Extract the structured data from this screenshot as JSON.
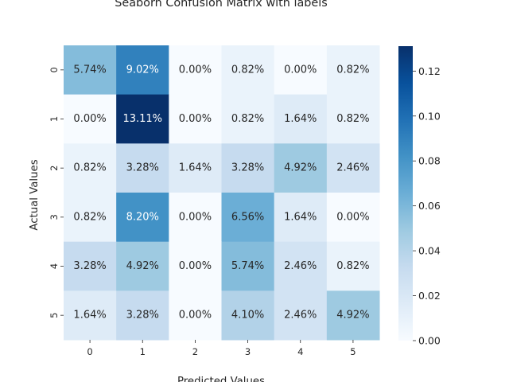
{
  "chart_data": {
    "type": "heatmap",
    "title": "Seaborn Confusion Matrix with labels",
    "xlabel": "Predicted Values",
    "ylabel": "Actual Values",
    "x_categories": [
      "0",
      "1",
      "2",
      "3",
      "4",
      "5"
    ],
    "y_categories": [
      "0",
      "1",
      "2",
      "3",
      "4",
      "5"
    ],
    "values": [
      [
        0.0574,
        0.0902,
        0.0,
        0.0082,
        0.0,
        0.0082
      ],
      [
        0.0,
        0.1311,
        0.0,
        0.0082,
        0.0164,
        0.0082
      ],
      [
        0.0082,
        0.0328,
        0.0164,
        0.0328,
        0.0492,
        0.0246
      ],
      [
        0.0082,
        0.082,
        0.0,
        0.0656,
        0.0164,
        0.0
      ],
      [
        0.0328,
        0.0492,
        0.0,
        0.0574,
        0.0246,
        0.0082
      ],
      [
        0.0164,
        0.0328,
        0.0,
        0.041,
        0.0246,
        0.0492
      ]
    ],
    "annotations": [
      [
        "5.74%",
        "9.02%",
        "0.00%",
        "0.82%",
        "0.00%",
        "0.82%"
      ],
      [
        "0.00%",
        "13.11%",
        "0.00%",
        "0.82%",
        "1.64%",
        "0.82%"
      ],
      [
        "0.82%",
        "3.28%",
        "1.64%",
        "3.28%",
        "4.92%",
        "2.46%"
      ],
      [
        "0.82%",
        "8.20%",
        "0.00%",
        "6.56%",
        "1.64%",
        "0.00%"
      ],
      [
        "3.28%",
        "4.92%",
        "0.00%",
        "5.74%",
        "2.46%",
        "0.82%"
      ],
      [
        "1.64%",
        "3.28%",
        "0.00%",
        "4.10%",
        "2.46%",
        "4.92%"
      ]
    ],
    "colormap": "Blues",
    "vmin": 0.0,
    "vmax": 0.1311,
    "colorbar_ticks": [
      "0.00",
      "0.02",
      "0.04",
      "0.06",
      "0.08",
      "0.10",
      "0.12"
    ],
    "colorbar_tick_values": [
      0.0,
      0.02,
      0.04,
      0.06,
      0.08,
      0.1,
      0.12
    ],
    "grid": false
  }
}
